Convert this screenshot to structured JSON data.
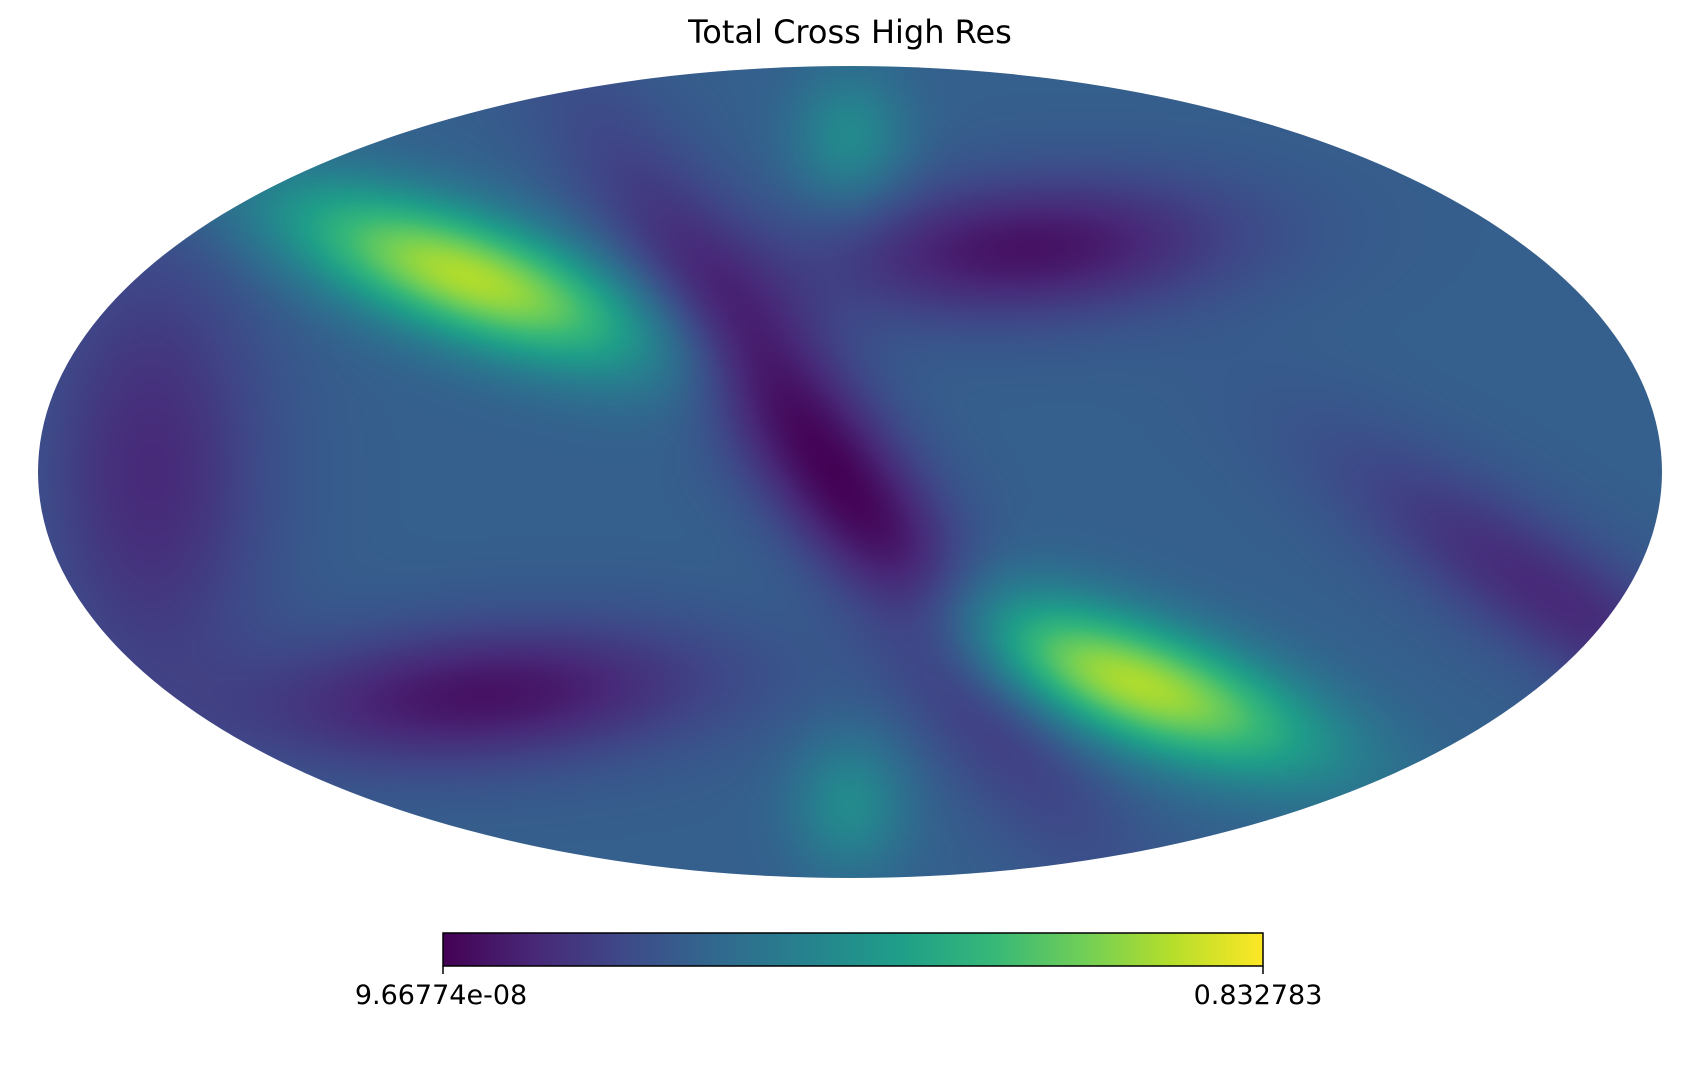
{
  "chart_data": {
    "type": "heatmap",
    "projection": "mollweide",
    "title": "Total Cross High Res",
    "colormap": "viridis",
    "colorbar": {
      "orientation": "horizontal",
      "placement": "bottom",
      "min_label": "9.66774e-08",
      "max_label": "0.832783",
      "min": 9.66774e-08,
      "max": 0.832783
    },
    "colors": {
      "viridis_stops": [
        "#440154",
        "#482878",
        "#3e4a89",
        "#31688e",
        "#26828e",
        "#1f9e89",
        "#35b779",
        "#6ece58",
        "#b5de2b",
        "#fde725"
      ]
    },
    "features": [
      {
        "name": "maximum",
        "hemisphere": "north",
        "side": "left",
        "level": 0.83
      },
      {
        "name": "maximum",
        "hemisphere": "south",
        "side": "right",
        "level": 0.83
      },
      {
        "name": "minimum",
        "region": "center band",
        "level": 0.0
      },
      {
        "name": "minimum",
        "hemisphere": "north",
        "side": "right",
        "level": 0.0
      },
      {
        "name": "minimum",
        "hemisphere": "south",
        "side": "left",
        "level": 0.0
      }
    ]
  }
}
